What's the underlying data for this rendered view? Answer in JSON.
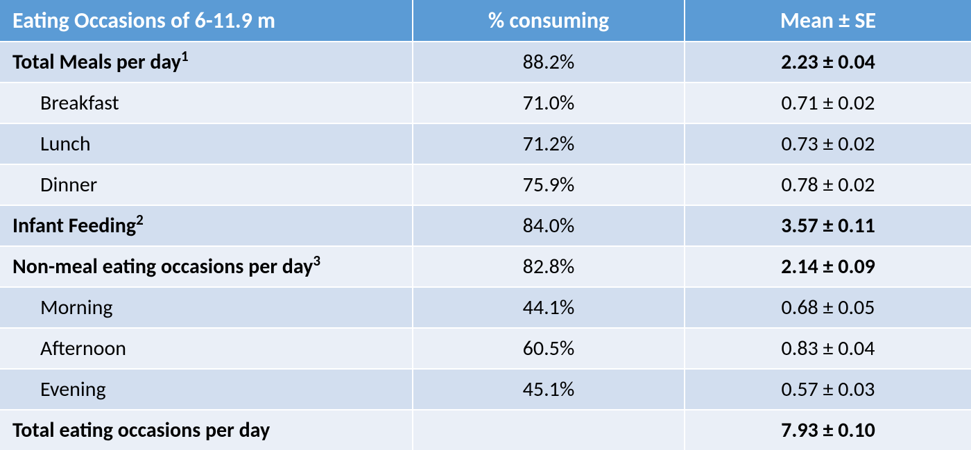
{
  "table": {
    "header_bg": "#5b9bd5",
    "row_bg_odd": "#d2deef",
    "row_bg_even": "#eaeff7",
    "text_color": "#000000",
    "header_text_color": "#ffffff",
    "header_fontsize": 32,
    "cell_fontsize": 30,
    "columns": [
      {
        "label": "Eating Occasions of 6-11.9 m",
        "align": "left"
      },
      {
        "label": "% consuming",
        "align": "center"
      },
      {
        "label": "Mean ± SE",
        "align": "center"
      }
    ],
    "rows": [
      {
        "label": "Total Meals per day",
        "sup": "1",
        "pct": "88.2%",
        "mean": "2.23 ± 0.04",
        "bold": true,
        "indent": false
      },
      {
        "label": "Breakfast",
        "sup": "",
        "pct": "71.0%",
        "mean": "0.71 ± 0.02",
        "bold": false,
        "indent": true
      },
      {
        "label": "Lunch",
        "sup": "",
        "pct": "71.2%",
        "mean": "0.73 ± 0.02",
        "bold": false,
        "indent": true
      },
      {
        "label": "Dinner",
        "sup": "",
        "pct": "75.9%",
        "mean": "0.78 ± 0.02",
        "bold": false,
        "indent": true
      },
      {
        "label": "Infant Feeding",
        "sup": "2",
        "pct": "84.0%",
        "mean": "3.57 ± 0.11",
        "bold": true,
        "indent": false
      },
      {
        "label": "Non-meal eating occasions per day",
        "sup": "3",
        "pct": "82.8%",
        "mean": "2.14 ± 0.09",
        "bold": true,
        "indent": false
      },
      {
        "label": "Morning",
        "sup": "",
        "pct": "44.1%",
        "mean": "0.68 ± 0.05",
        "bold": false,
        "indent": true
      },
      {
        "label": "Afternoon",
        "sup": "",
        "pct": "60.5%",
        "mean": "0.83 ± 0.04",
        "bold": false,
        "indent": true
      },
      {
        "label": "Evening",
        "sup": "",
        "pct": "45.1%",
        "mean": "0.57 ± 0.03",
        "bold": false,
        "indent": true
      },
      {
        "label": "Total eating occasions per day",
        "sup": "",
        "pct": "",
        "mean": "7.93 ± 0.10",
        "bold": true,
        "indent": false
      }
    ]
  }
}
